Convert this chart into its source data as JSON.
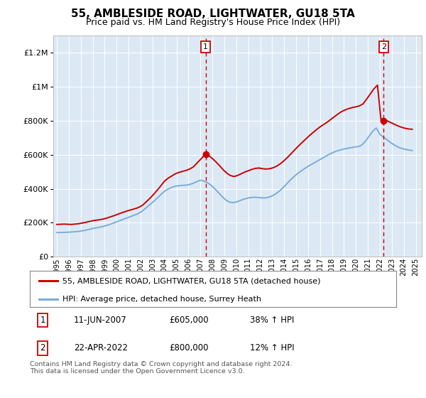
{
  "title": "55, AMBLESIDE ROAD, LIGHTWATER, GU18 5TA",
  "subtitle": "Price paid vs. HM Land Registry's House Price Index (HPI)",
  "legend_line1": "55, AMBLESIDE ROAD, LIGHTWATER, GU18 5TA (detached house)",
  "legend_line2": "HPI: Average price, detached house, Surrey Heath",
  "annotation1_date": "11-JUN-2007",
  "annotation1_price": "£605,000",
  "annotation1_hpi": "38% ↑ HPI",
  "annotation2_date": "22-APR-2022",
  "annotation2_price": "£800,000",
  "annotation2_hpi": "12% ↑ HPI",
  "footer": "Contains HM Land Registry data © Crown copyright and database right 2024.\nThis data is licensed under the Open Government Licence v3.0.",
  "red_color": "#cc0000",
  "blue_color": "#7aaddb",
  "bg_color": "#dce9f5",
  "marker1_x": 2007.44,
  "marker2_x": 2022.31,
  "marker1_y": 605000,
  "marker2_y": 800000,
  "ylim": [
    0,
    1300000
  ],
  "xlim_start": 1994.7,
  "xlim_end": 2025.5,
  "red_line_years": [
    1995.0,
    1995.3,
    1995.6,
    1995.9,
    1996.2,
    1996.5,
    1996.8,
    1997.1,
    1997.4,
    1997.7,
    1998.0,
    1998.3,
    1998.6,
    1998.9,
    1999.2,
    1999.5,
    1999.8,
    2000.1,
    2000.4,
    2000.7,
    2001.0,
    2001.3,
    2001.6,
    2001.9,
    2002.2,
    2002.5,
    2002.8,
    2003.1,
    2003.4,
    2003.7,
    2004.0,
    2004.3,
    2004.6,
    2004.9,
    2005.2,
    2005.5,
    2005.8,
    2006.1,
    2006.4,
    2006.7,
    2007.0,
    2007.44,
    2007.7,
    2008.0,
    2008.3,
    2008.6,
    2008.9,
    2009.2,
    2009.5,
    2009.8,
    2010.1,
    2010.4,
    2010.7,
    2011.0,
    2011.3,
    2011.6,
    2011.9,
    2012.2,
    2012.5,
    2012.8,
    2013.1,
    2013.4,
    2013.7,
    2014.0,
    2014.3,
    2014.6,
    2014.9,
    2015.2,
    2015.5,
    2015.8,
    2016.1,
    2016.4,
    2016.7,
    2017.0,
    2017.3,
    2017.6,
    2017.9,
    2018.2,
    2018.5,
    2018.8,
    2019.1,
    2019.4,
    2019.7,
    2020.0,
    2020.3,
    2020.6,
    2020.9,
    2021.2,
    2021.5,
    2021.8,
    2022.1,
    2022.31,
    2022.6,
    2022.9,
    2023.2,
    2023.5,
    2023.8,
    2024.1,
    2024.4,
    2024.7
  ],
  "red_line_vals": [
    190000,
    191000,
    192000,
    191000,
    190000,
    192000,
    194000,
    198000,
    202000,
    207000,
    212000,
    215000,
    218000,
    222000,
    228000,
    235000,
    242000,
    250000,
    258000,
    265000,
    272000,
    278000,
    284000,
    292000,
    305000,
    325000,
    345000,
    368000,
    392000,
    418000,
    445000,
    462000,
    475000,
    488000,
    496000,
    502000,
    508000,
    516000,
    528000,
    550000,
    572000,
    605000,
    595000,
    578000,
    558000,
    536000,
    512000,
    492000,
    478000,
    472000,
    478000,
    488000,
    498000,
    506000,
    514000,
    520000,
    522000,
    518000,
    516000,
    518000,
    524000,
    534000,
    548000,
    566000,
    586000,
    608000,
    630000,
    652000,
    672000,
    692000,
    712000,
    730000,
    748000,
    764000,
    778000,
    792000,
    808000,
    824000,
    840000,
    854000,
    864000,
    872000,
    878000,
    882000,
    888000,
    900000,
    928000,
    958000,
    988000,
    1010000,
    800000,
    810000,
    800000,
    790000,
    780000,
    770000,
    762000,
    756000,
    752000,
    750000
  ],
  "blue_line_years": [
    1995.0,
    1995.3,
    1995.6,
    1995.9,
    1996.2,
    1996.5,
    1996.8,
    1997.1,
    1997.4,
    1997.7,
    1998.0,
    1998.3,
    1998.6,
    1998.9,
    1999.2,
    1999.5,
    1999.8,
    2000.1,
    2000.4,
    2000.7,
    2001.0,
    2001.3,
    2001.6,
    2001.9,
    2002.2,
    2002.5,
    2002.8,
    2003.1,
    2003.4,
    2003.7,
    2004.0,
    2004.3,
    2004.6,
    2004.9,
    2005.2,
    2005.5,
    2005.8,
    2006.1,
    2006.4,
    2006.7,
    2007.0,
    2007.3,
    2007.6,
    2007.9,
    2008.2,
    2008.5,
    2008.8,
    2009.1,
    2009.4,
    2009.7,
    2010.0,
    2010.3,
    2010.6,
    2010.9,
    2011.2,
    2011.5,
    2011.8,
    2012.1,
    2012.4,
    2012.7,
    2013.0,
    2013.3,
    2013.6,
    2013.9,
    2014.2,
    2014.5,
    2014.8,
    2015.1,
    2015.4,
    2015.7,
    2016.0,
    2016.3,
    2016.6,
    2016.9,
    2017.2,
    2017.5,
    2017.8,
    2018.1,
    2018.4,
    2018.7,
    2019.0,
    2019.3,
    2019.6,
    2019.9,
    2020.2,
    2020.5,
    2020.8,
    2021.1,
    2021.4,
    2021.7,
    2022.0,
    2022.3,
    2022.6,
    2022.9,
    2023.2,
    2023.5,
    2023.8,
    2024.1,
    2024.4,
    2024.7
  ],
  "blue_line_vals": [
    142000,
    142500,
    143000,
    144000,
    145500,
    147000,
    149000,
    152000,
    156000,
    161000,
    166000,
    170000,
    174000,
    179000,
    185000,
    192000,
    200000,
    208000,
    216000,
    224000,
    232000,
    240000,
    248000,
    258000,
    272000,
    290000,
    308000,
    326000,
    346000,
    366000,
    385000,
    398000,
    408000,
    415000,
    418000,
    420000,
    421000,
    425000,
    432000,
    442000,
    450000,
    445000,
    435000,
    420000,
    400000,
    378000,
    355000,
    335000,
    322000,
    318000,
    322000,
    330000,
    338000,
    344000,
    348000,
    350000,
    349000,
    346000,
    346000,
    350000,
    358000,
    370000,
    386000,
    406000,
    428000,
    450000,
    470000,
    488000,
    504000,
    518000,
    532000,
    544000,
    556000,
    568000,
    580000,
    592000,
    604000,
    614000,
    622000,
    628000,
    634000,
    638000,
    642000,
    646000,
    648000,
    658000,
    680000,
    710000,
    738000,
    758000,
    720000,
    704000,
    688000,
    672000,
    658000,
    646000,
    638000,
    632000,
    628000,
    625000
  ]
}
